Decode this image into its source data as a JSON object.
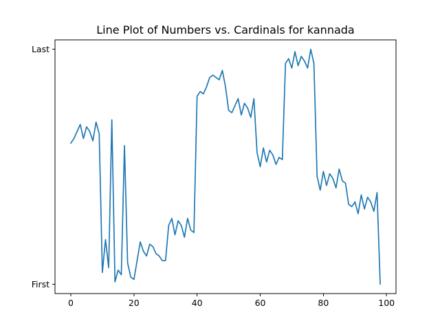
{
  "colors": {
    "series": "#1f77b4",
    "axis": "#000000",
    "background": "#ffffff"
  },
  "chart_data": {
    "type": "line",
    "title": "Line Plot of Numbers vs. Cardinals for kannada",
    "xlabel": "",
    "ylabel": "",
    "xlim": [
      -5,
      103
    ],
    "ylim": [
      -0.04,
      1.04
    ],
    "x_ticks": [
      0,
      20,
      40,
      60,
      80,
      100
    ],
    "y_ticks": [
      {
        "value": 0,
        "label": "First"
      },
      {
        "value": 1,
        "label": "Last"
      }
    ],
    "grid": false,
    "legend": "none",
    "x": [
      0,
      1,
      2,
      3,
      4,
      5,
      6,
      7,
      8,
      9,
      10,
      11,
      12,
      13,
      14,
      15,
      16,
      17,
      18,
      19,
      20,
      21,
      22,
      23,
      24,
      25,
      26,
      27,
      28,
      29,
      30,
      31,
      32,
      33,
      34,
      35,
      36,
      37,
      38,
      39,
      40,
      41,
      42,
      43,
      44,
      45,
      46,
      47,
      48,
      49,
      50,
      51,
      52,
      53,
      54,
      55,
      56,
      57,
      58,
      59,
      60,
      61,
      62,
      63,
      64,
      65,
      66,
      67,
      68,
      69,
      70,
      71,
      72,
      73,
      74,
      75,
      76,
      77,
      78,
      79,
      80,
      81,
      82,
      83,
      84,
      85,
      86,
      87,
      88,
      89,
      90,
      91,
      92,
      93,
      94,
      95,
      96,
      97,
      98
    ],
    "y": [
      0.6,
      0.62,
      0.65,
      0.68,
      0.62,
      0.67,
      0.65,
      0.61,
      0.69,
      0.64,
      0.05,
      0.19,
      0.07,
      0.7,
      0.01,
      0.06,
      0.04,
      0.59,
      0.09,
      0.03,
      0.02,
      0.1,
      0.18,
      0.14,
      0.12,
      0.17,
      0.16,
      0.13,
      0.12,
      0.1,
      0.1,
      0.25,
      0.28,
      0.21,
      0.27,
      0.25,
      0.2,
      0.28,
      0.23,
      0.22,
      0.8,
      0.82,
      0.81,
      0.84,
      0.88,
      0.89,
      0.88,
      0.87,
      0.91,
      0.84,
      0.74,
      0.73,
      0.76,
      0.79,
      0.72,
      0.77,
      0.75,
      0.71,
      0.79,
      0.56,
      0.5,
      0.58,
      0.52,
      0.57,
      0.55,
      0.51,
      0.54,
      0.53,
      0.94,
      0.96,
      0.92,
      0.99,
      0.93,
      0.97,
      0.95,
      0.92,
      1.0,
      0.94,
      0.46,
      0.4,
      0.48,
      0.42,
      0.47,
      0.45,
      0.41,
      0.49,
      0.44,
      0.43,
      0.34,
      0.33,
      0.35,
      0.3,
      0.38,
      0.32,
      0.37,
      0.35,
      0.31,
      0.39,
      0.0
    ]
  }
}
